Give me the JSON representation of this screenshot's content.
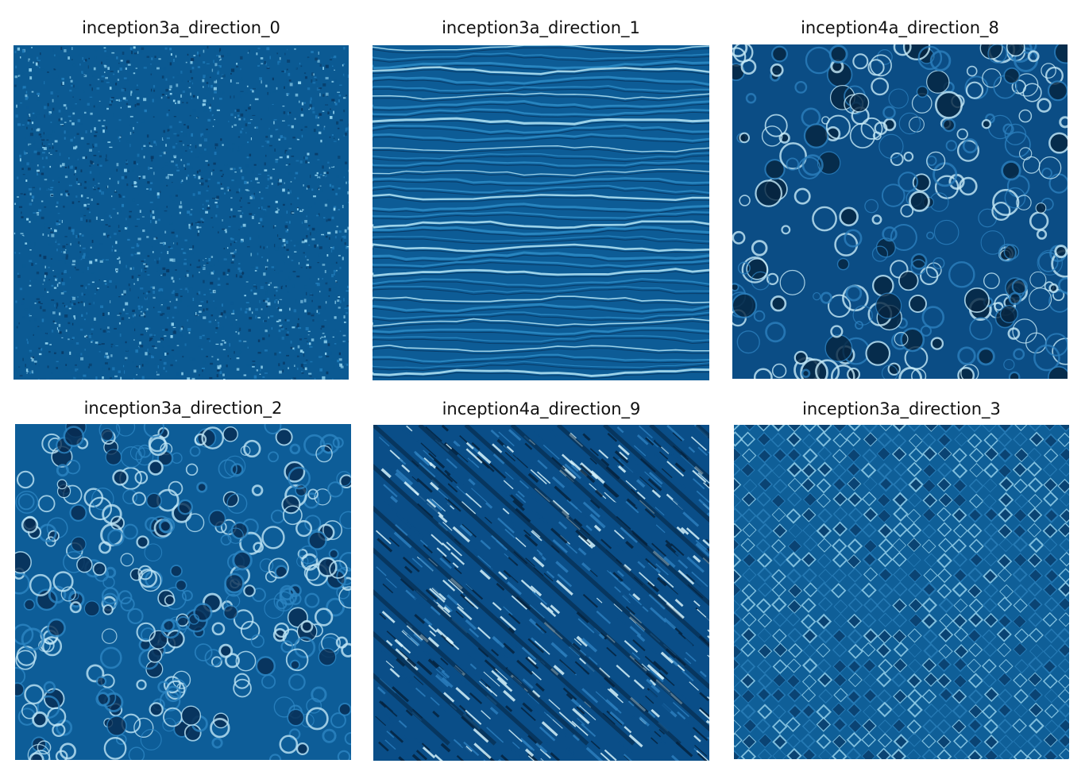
{
  "figure": {
    "panels": [
      {
        "title": "inception3a_direction_0",
        "pattern": "fine-noise",
        "colors": [
          "#083a66",
          "#0b5a93",
          "#1f7ab8",
          "#8fd0ec"
        ]
      },
      {
        "title": "inception3a_direction_1",
        "pattern": "horizontal-waves",
        "colors": [
          "#072f56",
          "#0d5c96",
          "#2e8cc7",
          "#b6e6f7"
        ]
      },
      {
        "title": "inception4a_direction_8",
        "pattern": "swirls",
        "colors": [
          "#06243f",
          "#0b4d85",
          "#2c7fbd",
          "#c7ebf8"
        ]
      },
      {
        "title": "inception3a_direction_2",
        "pattern": "loops",
        "colors": [
          "#072c52",
          "#0d5d98",
          "#2d86c3",
          "#bfe6f6"
        ]
      },
      {
        "title": "inception4a_direction_9",
        "pattern": "diagonal-streaks",
        "colors": [
          "#05233f",
          "#0a4e88",
          "#2b7ebd",
          "#d6f3fb"
        ]
      },
      {
        "title": "inception3a_direction_3",
        "pattern": "diamond-weave",
        "colors": [
          "#0a3d6b",
          "#0f5f98",
          "#2a7fba",
          "#9bd6ef"
        ]
      }
    ]
  }
}
